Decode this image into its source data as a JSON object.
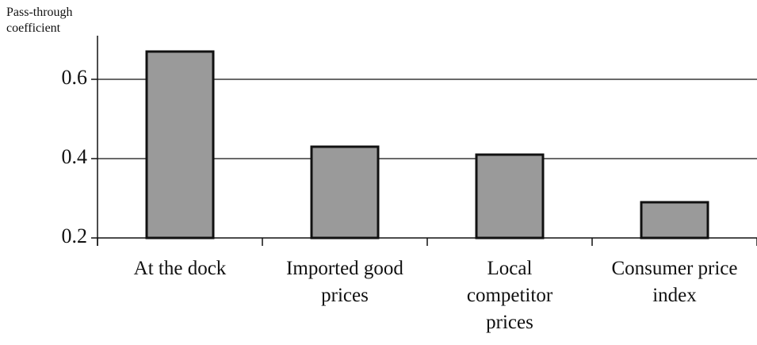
{
  "chart_data": {
    "type": "bar",
    "y_axis_label": "Pass-through coefficient",
    "categories": [
      "At the dock",
      "Imported good prices",
      "Local competitor prices",
      "Consumer price index"
    ],
    "values": [
      0.67,
      0.43,
      0.41,
      0.29
    ],
    "color": "#9a9a9a",
    "ylim": [
      0.2,
      0.7
    ],
    "yticks": [
      0.2,
      0.4,
      0.6
    ],
    "grid": true
  }
}
